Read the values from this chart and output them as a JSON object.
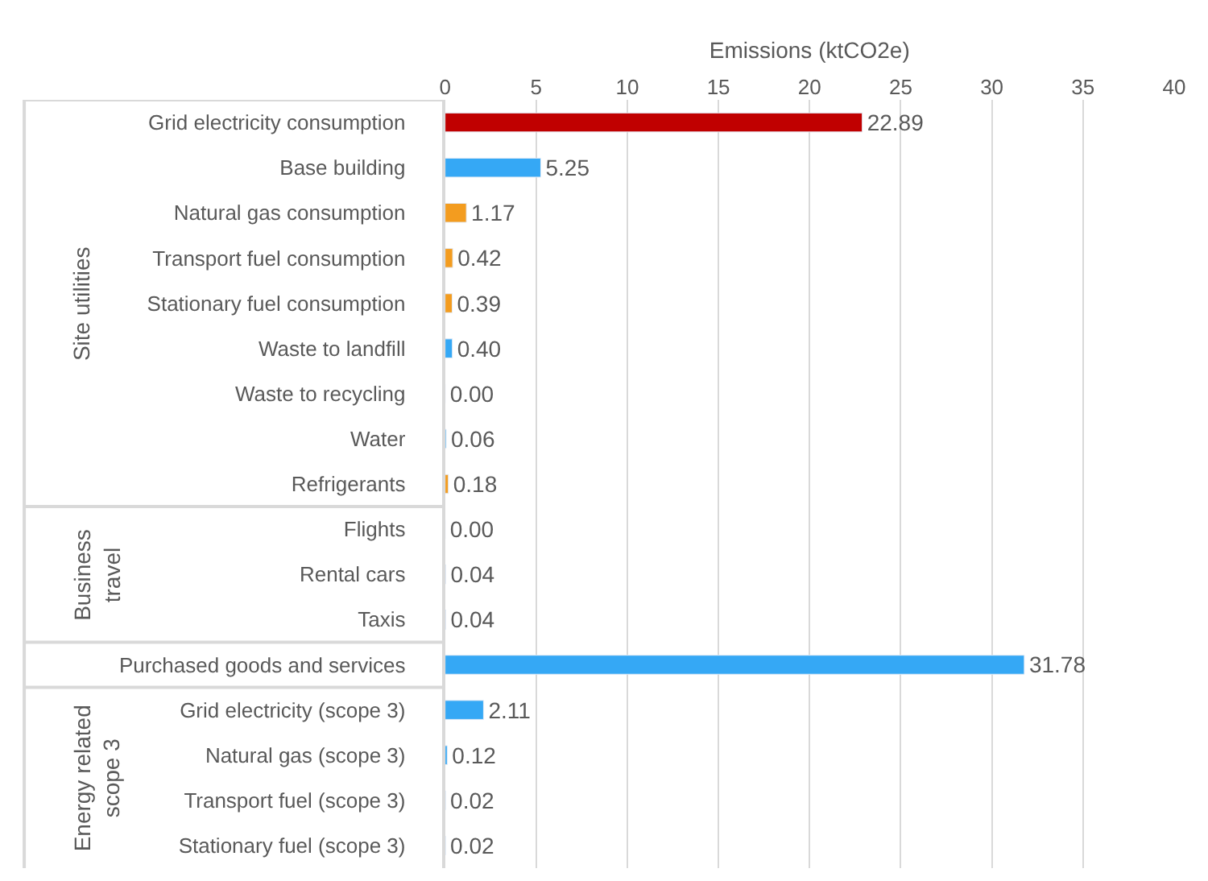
{
  "chart_data": {
    "type": "bar",
    "orientation": "horizontal",
    "xlabel": "Emissions (ktCO2e)",
    "categories": [
      "Grid electricity consumption",
      "Base building",
      "Natural gas consumption",
      "Transport fuel consumption",
      "Stationary fuel consumption",
      "Waste to landfill",
      "Waste to recycling",
      "Water",
      "Refrigerants",
      "Flights",
      "Rental cars",
      "Taxis",
      "Purchased goods and services",
      "Grid electricity (scope 3)",
      "Natural gas (scope 3)",
      "Transport fuel (scope 3)",
      "Stationary fuel (scope 3)"
    ],
    "values": [
      22.89,
      5.25,
      1.17,
      0.42,
      0.39,
      0.4,
      0.0,
      0.06,
      0.18,
      0.0,
      0.04,
      0.04,
      31.78,
      2.11,
      0.12,
      0.02,
      0.02
    ],
    "value_labels": [
      "22.89",
      "5.25",
      "1.17",
      "0.42",
      "0.39",
      "0.40",
      "0.00",
      "0.06",
      "0.18",
      "0.00",
      "0.04",
      "0.04",
      "31.78",
      "2.11",
      "0.12",
      "0.02",
      "0.02"
    ],
    "colors": [
      "#c00000",
      "#35a8f5",
      "#f39c1f",
      "#f39c1f",
      "#f39c1f",
      "#35a8f5",
      null,
      "#35a8f5",
      "#f39c1f",
      null,
      "#35a8f5",
      "#35a8f5",
      "#35a8f5",
      "#35a8f5",
      "#35a8f5",
      "#35a8f5",
      "#35a8f5"
    ],
    "xlim": [
      0,
      40
    ],
    "xticks": [
      0,
      5,
      10,
      15,
      20,
      25,
      30,
      35,
      40
    ],
    "grid": "x",
    "legend": false,
    "annotations": [
      "Site utilities",
      "Business\ntravel",
      "Energy related\nscope 3"
    ]
  }
}
